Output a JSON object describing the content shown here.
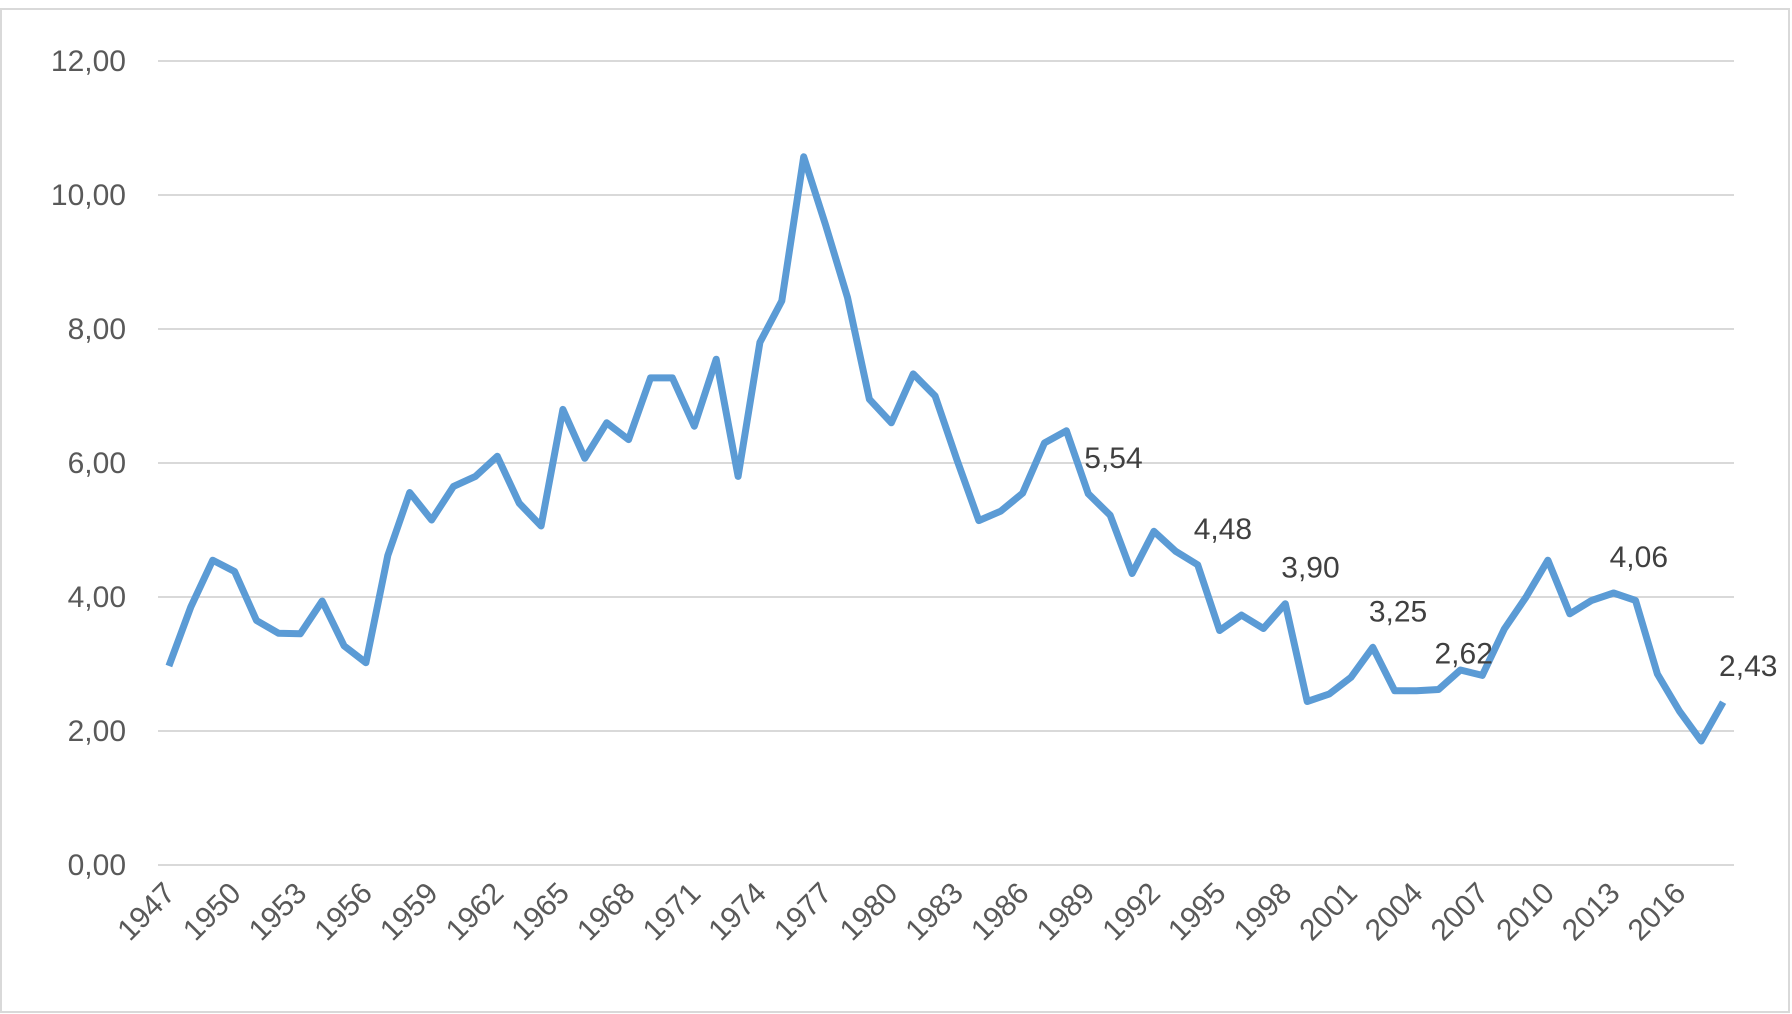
{
  "chart_data": {
    "type": "line",
    "color": "#5b9bd5",
    "grid": true,
    "categories": [
      "1947",
      null,
      null,
      "1950",
      null,
      null,
      "1953",
      null,
      null,
      "1956",
      null,
      null,
      "1959",
      null,
      null,
      "1962",
      null,
      null,
      "1965",
      null,
      null,
      "1968",
      null,
      null,
      "1971",
      null,
      null,
      "1974",
      null,
      null,
      "1977",
      null,
      null,
      "1980",
      null,
      null,
      "1983",
      null,
      null,
      "1986",
      null,
      null,
      "1989",
      null,
      null,
      "1992",
      null,
      null,
      "1995",
      null,
      null,
      "1998",
      null,
      null,
      "2001",
      null,
      null,
      "2004",
      null,
      null,
      "2007",
      null,
      null,
      "2010",
      null,
      null,
      "2013",
      null,
      null,
      "2016",
      null,
      null
    ],
    "values": [
      2.97,
      3.85,
      4.55,
      4.38,
      3.65,
      3.46,
      3.45,
      3.94,
      3.27,
      3.02,
      4.62,
      5.56,
      5.15,
      5.65,
      5.8,
      6.1,
      5.4,
      5.06,
      6.8,
      6.07,
      6.6,
      6.35,
      7.27,
      7.27,
      6.55,
      7.55,
      5.8,
      7.8,
      8.42,
      10.57,
      9.55,
      8.47,
      6.95,
      6.6,
      7.33,
      7.0,
      6.05,
      5.14,
      5.28,
      5.55,
      6.3,
      6.48,
      5.54,
      5.22,
      4.35,
      4.98,
      4.68,
      4.48,
      3.5,
      3.73,
      3.53,
      3.9,
      2.44,
      2.55,
      2.8,
      3.25,
      2.6,
      2.6,
      2.62,
      2.91,
      2.83,
      3.52,
      4.0,
      4.55,
      3.75,
      3.95,
      4.06,
      3.95,
      2.85,
      2.3,
      1.85,
      2.43
    ],
    "value_labels": [
      null,
      null,
      null,
      null,
      null,
      null,
      null,
      null,
      null,
      null,
      null,
      null,
      null,
      null,
      null,
      null,
      null,
      null,
      null,
      null,
      null,
      null,
      null,
      null,
      null,
      null,
      null,
      null,
      null,
      null,
      null,
      null,
      null,
      null,
      null,
      null,
      null,
      null,
      null,
      null,
      null,
      null,
      "5,54",
      null,
      null,
      null,
      null,
      "4,48",
      null,
      null,
      null,
      "3,90",
      null,
      null,
      null,
      "3,25",
      null,
      null,
      "2,62",
      null,
      null,
      null,
      null,
      null,
      null,
      null,
      "4,06",
      null,
      null,
      null,
      null,
      "2,43"
    ],
    "ylim": [
      0,
      12
    ],
    "yticks": [
      {
        "value": 0,
        "label": "0,00"
      },
      {
        "value": 2,
        "label": "2,00"
      },
      {
        "value": 4,
        "label": "4,00"
      },
      {
        "value": 6,
        "label": "6,00"
      },
      {
        "value": 8,
        "label": "8,00"
      },
      {
        "value": 10,
        "label": "10,00"
      },
      {
        "value": 12,
        "label": "12,00"
      }
    ]
  }
}
